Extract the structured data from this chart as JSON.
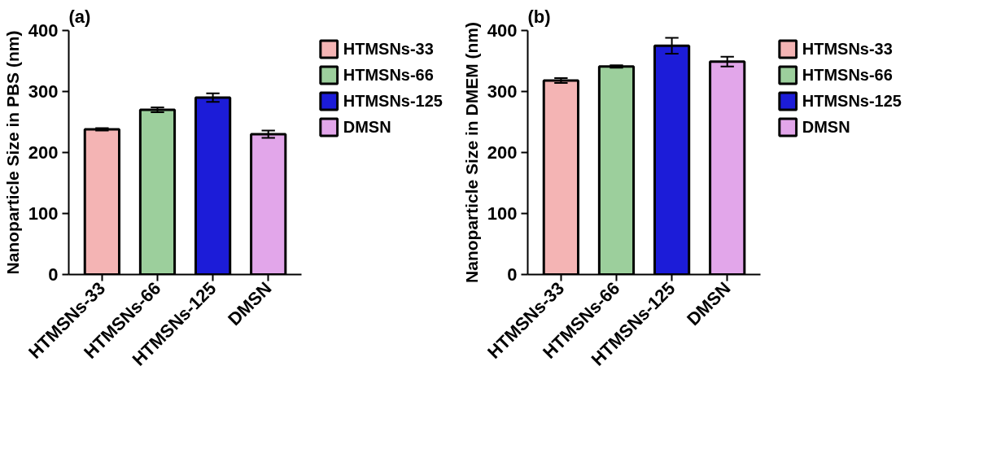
{
  "chart_data": [
    {
      "type": "bar",
      "title": "(a)",
      "ylabel": "Nanoparticle Size in PBS (nm)",
      "categories": [
        "HTMSNs-33",
        "HTMSNs-66",
        "HTMSNs-125",
        "DMSN"
      ],
      "stacked": true,
      "series": [
        {
          "name": "HTMSNs-33",
          "color": "#f4b4b4",
          "values": [
            238,
            null,
            null,
            null
          ],
          "errors": [
            2,
            null,
            null,
            null
          ]
        },
        {
          "name": "HTMSNs-66",
          "color": "#9ccf9c",
          "values": [
            null,
            270,
            null,
            null
          ],
          "errors": [
            null,
            4,
            null,
            null
          ]
        },
        {
          "name": "HTMSNs-125",
          "color": "#1c1cd8",
          "values": [
            null,
            null,
            290,
            null
          ],
          "errors": [
            null,
            null,
            7,
            null
          ]
        },
        {
          "name": "DMSN",
          "color": "#e2a6ea",
          "values": [
            null,
            null,
            null,
            230
          ],
          "errors": [
            null,
            null,
            null,
            6
          ]
        }
      ],
      "ylim": [
        0,
        400
      ],
      "yticks": [
        0,
        100,
        200,
        300,
        400
      ],
      "grid": false,
      "legend": "right"
    },
    {
      "type": "bar",
      "title": "(b)",
      "ylabel": "Nanoparticle Size in DMEM (nm)",
      "categories": [
        "HTMSNs-33",
        "HTMSNs-66",
        "HTMSNs-125",
        "DMSN"
      ],
      "stacked": true,
      "series": [
        {
          "name": "HTMSNs-33",
          "color": "#f4b4b4",
          "values": [
            318,
            null,
            null,
            null
          ],
          "errors": [
            4,
            null,
            null,
            null
          ]
        },
        {
          "name": "HTMSNs-66",
          "color": "#9ccf9c",
          "values": [
            null,
            341,
            null,
            null
          ],
          "errors": [
            null,
            2,
            null,
            null
          ]
        },
        {
          "name": "HTMSNs-125",
          "color": "#1c1cd8",
          "values": [
            null,
            null,
            375,
            null
          ],
          "errors": [
            null,
            null,
            13,
            null
          ]
        },
        {
          "name": "DMSN",
          "color": "#e2a6ea",
          "values": [
            null,
            null,
            null,
            349
          ],
          "errors": [
            null,
            null,
            null,
            8
          ]
        }
      ],
      "ylim": [
        0,
        400
      ],
      "yticks": [
        0,
        100,
        200,
        300,
        400
      ],
      "grid": false,
      "legend": "right"
    }
  ]
}
